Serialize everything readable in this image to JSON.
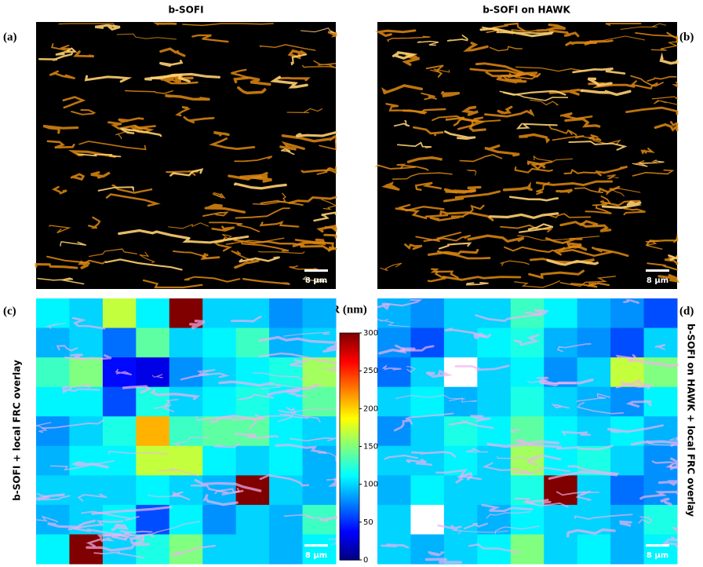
{
  "figure": {
    "titles": [
      "b-SOFI",
      "b-SOFI on HAWK"
    ],
    "panel_labels": [
      "(a)",
      "(b)",
      "(c)",
      "(d)"
    ],
    "side_labels": [
      "b-SOFI + local FRC overlay",
      "b-SOFI on HAWK + local FRC overlay"
    ],
    "scale_bar": "8 µm"
  },
  "colorbar": {
    "label": "R (nm)",
    "lim": [
      0,
      300
    ],
    "ticks": [
      0,
      50,
      100,
      150,
      200,
      250,
      300
    ],
    "colormap": "jet"
  },
  "chart_data": [
    {
      "type": "heatmap",
      "values": [
        [
          110,
          100,
          170,
          110,
          300,
          100,
          100,
          80,
          90
        ],
        [
          90,
          100,
          70,
          140,
          100,
          110,
          130,
          90,
          100
        ],
        [
          130,
          150,
          40,
          30,
          80,
          100,
          110,
          120,
          160
        ],
        [
          110,
          110,
          60,
          120,
          100,
          110,
          120,
          110,
          140
        ],
        [
          80,
          100,
          120,
          210,
          130,
          140,
          140,
          110,
          100
        ],
        [
          90,
          110,
          110,
          170,
          170,
          110,
          100,
          110,
          90
        ],
        [
          100,
          100,
          100,
          110,
          100,
          90,
          300,
          100,
          90
        ],
        [
          90,
          100,
          110,
          60,
          110,
          80,
          100,
          90,
          130
        ],
        [
          110,
          300,
          100,
          120,
          150,
          100,
          100,
          90,
          110
        ]
      ]
    },
    {
      "type": "heatmap",
      "values": [
        [
          90,
          80,
          100,
          100,
          130,
          110,
          90,
          80,
          60
        ],
        [
          80,
          60,
          100,
          110,
          120,
          90,
          80,
          60,
          100
        ],
        [
          70,
          100,
          null,
          100,
          110,
          80,
          100,
          170,
          150
        ],
        [
          100,
          110,
          90,
          100,
          120,
          100,
          90,
          80,
          110
        ],
        [
          80,
          100,
          120,
          110,
          140,
          110,
          100,
          110,
          90
        ],
        [
          100,
          100,
          110,
          100,
          160,
          110,
          120,
          100,
          80
        ],
        [
          90,
          110,
          100,
          100,
          120,
          300,
          100,
          70,
          80
        ],
        [
          100,
          null,
          100,
          90,
          110,
          100,
          100,
          90,
          120
        ],
        [
          100,
          90,
          100,
          110,
          150,
          100,
          110,
          90,
          110
        ]
      ]
    }
  ]
}
